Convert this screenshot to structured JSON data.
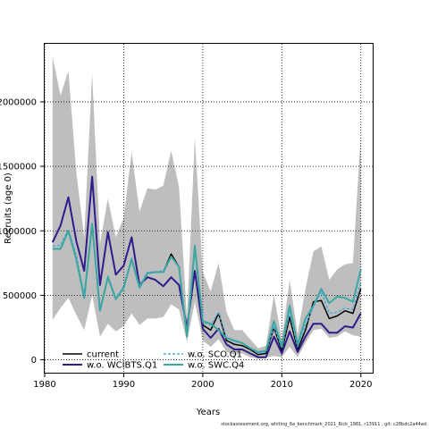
{
  "chart_data": {
    "type": "line",
    "title": "",
    "xlabel": "Years",
    "ylabel": "Recruits (age 0)",
    "xlim": [
      1980,
      2021.5
    ],
    "ylim": [
      -100000,
      2450000
    ],
    "xticks": [
      1980,
      1990,
      2000,
      2010,
      2020
    ],
    "yticks": [
      0,
      500000,
      1000000,
      1500000,
      2000000
    ],
    "ytick_labels": [
      "0",
      "500000",
      "1000000",
      "1500000",
      "2000000"
    ],
    "grid": true,
    "legend_position": "bottom-left",
    "x": [
      1981,
      1982,
      1983,
      1984,
      1985,
      1986,
      1987,
      1988,
      1989,
      1990,
      1991,
      1992,
      1993,
      1994,
      1995,
      1996,
      1997,
      1998,
      1999,
      2000,
      2001,
      2002,
      2003,
      2004,
      2005,
      2006,
      2007,
      2008,
      2009,
      2010,
      2011,
      2012,
      2013,
      2014,
      2015,
      2016,
      2017,
      2018,
      2019,
      2020
    ],
    "band": {
      "color": "#bebebe",
      "lower": [
        310000,
        400000,
        480000,
        350000,
        230000,
        500000,
        180000,
        280000,
        220000,
        260000,
        360000,
        270000,
        320000,
        320000,
        330000,
        430000,
        390000,
        140000,
        450000,
        150000,
        100000,
        160000,
        60000,
        40000,
        50000,
        20000,
        10000,
        20000,
        30000,
        20000,
        100000,
        20000,
        130000,
        230000,
        240000,
        170000,
        180000,
        220000,
        190000,
        180000
      ],
      "upper": [
        2350000,
        2050000,
        2240000,
        1450000,
        950000,
        2220000,
        900000,
        1250000,
        950000,
        1100000,
        1610000,
        1150000,
        1330000,
        1320000,
        1350000,
        1620000,
        1340000,
        320000,
        1720000,
        680000,
        530000,
        750000,
        370000,
        230000,
        230000,
        160000,
        90000,
        110000,
        500000,
        160000,
        620000,
        200000,
        550000,
        840000,
        880000,
        620000,
        700000,
        740000,
        750000,
        1740000
      ]
    },
    "series": [
      {
        "name": "current",
        "color": "#000000",
        "dash": "",
        "width": 1.5,
        "values": [
          860000,
          860000,
          1000000,
          780000,
          480000,
          1050000,
          380000,
          640000,
          470000,
          560000,
          780000,
          560000,
          670000,
          680000,
          680000,
          820000,
          720000,
          180000,
          880000,
          270000,
          230000,
          360000,
          150000,
          120000,
          110000,
          80000,
          40000,
          50000,
          250000,
          70000,
          330000,
          80000,
          230000,
          450000,
          460000,
          320000,
          340000,
          380000,
          360000,
          550000
        ]
      },
      {
        "name": "w.o. WCIBTS.Q1",
        "color": "#2f1b8a",
        "dash": "",
        "width": 2,
        "values": [
          910000,
          1040000,
          1260000,
          920000,
          690000,
          1420000,
          580000,
          990000,
          660000,
          730000,
          950000,
          580000,
          640000,
          620000,
          570000,
          640000,
          580000,
          250000,
          690000,
          240000,
          170000,
          240000,
          120000,
          80000,
          80000,
          50000,
          20000,
          20000,
          180000,
          50000,
          220000,
          60000,
          180000,
          280000,
          280000,
          210000,
          210000,
          260000,
          250000,
          360000
        ]
      },
      {
        "name": "w.o. SCO.Q1",
        "color": "#4fa8e0",
        "dash": "3,2",
        "width": 1.5,
        "values": [
          880000,
          890000,
          1010000,
          810000,
          500000,
          1060000,
          390000,
          650000,
          480000,
          570000,
          790000,
          570000,
          680000,
          680000,
          690000,
          800000,
          720000,
          190000,
          890000,
          290000,
          270000,
          370000,
          170000,
          140000,
          130000,
          90000,
          50000,
          60000,
          260000,
          90000,
          370000,
          100000,
          270000,
          410000,
          530000,
          360000,
          370000,
          400000,
          390000,
          600000
        ]
      },
      {
        "name": "w.o. SWC.Q4",
        "color": "#3ca7a2",
        "dash": "",
        "width": 2,
        "values": [
          860000,
          860000,
          1000000,
          780000,
          480000,
          1050000,
          380000,
          640000,
          470000,
          560000,
          780000,
          560000,
          670000,
          680000,
          680000,
          800000,
          720000,
          180000,
          880000,
          300000,
          280000,
          230000,
          170000,
          150000,
          130000,
          90000,
          60000,
          70000,
          300000,
          100000,
          420000,
          120000,
          320000,
          420000,
          550000,
          440000,
          490000,
          480000,
          450000,
          700000
        ]
      }
    ]
  },
  "footer": "stockassessment.org,  whiting_6a_benchmark_2021_Rick_1981, r13911 , git: c28bdc2a44ad"
}
